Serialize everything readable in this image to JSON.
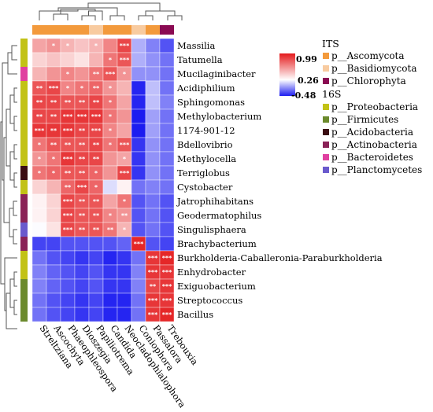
{
  "chart_data": {
    "type": "heatmap",
    "title": "",
    "rows": [
      "Massilia",
      "Tatumella",
      "Mucilaginibacter",
      "Acidiphilium",
      "Sphingomonas",
      "Methylobacterium",
      "1174-901-12",
      "Bdellovibrio",
      "Methylocella",
      "Terriglobus",
      "Cystobacter",
      "Jatrophihabitans",
      "Geodermatophilus",
      "Singulisphaera",
      "Brachybacterium",
      "Burkholderia-Caballeronia-Paraburkholderia",
      "Enhydrobacter",
      "Exiguobacterium",
      "Streptococcus",
      "Bacillus"
    ],
    "columns": [
      "Streltziana",
      "Ascochyta",
      "Phaeophleospora",
      "Dioszegia",
      "Papiliotrema",
      "Candida",
      "Neocladophialophora",
      "Coniophora",
      "Passalora",
      "Trebouxia"
    ],
    "row_phylum": [
      "p__Proteobacteria",
      "p__Proteobacteria",
      "p__Bacteroidetes",
      "p__Proteobacteria",
      "p__Proteobacteria",
      "p__Proteobacteria",
      "p__Proteobacteria",
      "p__Proteobacteria",
      "p__Proteobacteria",
      "p__Acidobacteria",
      "p__Proteobacteria",
      "p__Actinobacteria",
      "p__Actinobacteria",
      "p__Planctomycetes",
      "p__Actinobacteria",
      "p__Proteobacteria",
      "p__Proteobacteria",
      "p__Firmicutes",
      "p__Firmicutes",
      "p__Firmicutes"
    ],
    "column_phylum": [
      "p__Ascomycota",
      "p__Ascomycota",
      "p__Ascomycota",
      "p__Ascomycota",
      "p__Basidiomycota",
      "p__Ascomycota",
      "p__Ascomycota",
      "p__Basidiomycota",
      "p__Ascomycota",
      "p__Chlorophyta"
    ],
    "values": [
      [
        0.55,
        0.6,
        0.5,
        0.45,
        0.5,
        0.65,
        0.85,
        0.0,
        -0.15,
        -0.3
      ],
      [
        0.4,
        0.45,
        0.4,
        0.35,
        0.5,
        0.7,
        0.8,
        0.0,
        -0.1,
        -0.2
      ],
      [
        0.5,
        0.6,
        0.65,
        0.6,
        0.7,
        0.8,
        0.6,
        -0.1,
        -0.1,
        -0.2
      ],
      [
        0.8,
        0.85,
        0.65,
        0.7,
        0.75,
        0.6,
        0.5,
        -0.45,
        0.05,
        -0.2
      ],
      [
        0.85,
        0.85,
        0.8,
        0.8,
        0.85,
        0.7,
        0.55,
        -0.45,
        0.05,
        -0.15
      ],
      [
        0.85,
        0.85,
        0.9,
        0.9,
        0.9,
        0.7,
        0.6,
        -0.48,
        -0.05,
        -0.2
      ],
      [
        0.9,
        0.9,
        0.9,
        0.85,
        0.85,
        0.65,
        0.55,
        -0.48,
        -0.05,
        -0.2
      ],
      [
        0.7,
        0.8,
        0.8,
        0.8,
        0.85,
        0.7,
        0.8,
        -0.4,
        -0.1,
        -0.2
      ],
      [
        0.6,
        0.7,
        0.9,
        0.85,
        0.85,
        0.6,
        0.55,
        -0.4,
        -0.1,
        -0.2
      ],
      [
        0.7,
        0.75,
        0.8,
        0.8,
        0.75,
        0.6,
        0.85,
        -0.4,
        -0.1,
        -0.2
      ],
      [
        0.4,
        0.5,
        0.75,
        0.85,
        0.75,
        0.15,
        0.3,
        -0.2,
        -0.15,
        -0.2
      ],
      [
        0.3,
        0.4,
        0.85,
        0.8,
        0.8,
        0.55,
        0.7,
        -0.3,
        -0.2,
        -0.3
      ],
      [
        0.3,
        0.4,
        0.85,
        0.8,
        0.8,
        0.65,
        0.6,
        -0.3,
        -0.2,
        -0.3
      ],
      [
        0.25,
        0.35,
        0.85,
        0.8,
        0.8,
        0.7,
        0.5,
        -0.3,
        -0.2,
        -0.3
      ],
      [
        -0.35,
        -0.35,
        -0.3,
        -0.3,
        -0.3,
        -0.3,
        -0.25,
        0.95,
        -0.3,
        -0.35
      ],
      [
        -0.2,
        -0.3,
        -0.35,
        -0.4,
        -0.35,
        -0.45,
        -0.4,
        -0.2,
        0.9,
        0.95
      ],
      [
        -0.15,
        -0.25,
        -0.3,
        -0.35,
        -0.3,
        -0.4,
        -0.4,
        -0.15,
        0.9,
        0.9
      ],
      [
        -0.15,
        -0.25,
        -0.3,
        -0.35,
        -0.3,
        -0.4,
        -0.4,
        -0.15,
        0.85,
        0.9
      ],
      [
        -0.2,
        -0.3,
        -0.35,
        -0.4,
        -0.35,
        -0.45,
        -0.45,
        -0.2,
        0.9,
        0.9
      ],
      [
        -0.2,
        -0.3,
        -0.35,
        -0.4,
        -0.35,
        -0.45,
        -0.45,
        -0.2,
        0.9,
        0.95
      ]
    ],
    "significance": [
      [
        "",
        "*",
        "*",
        "",
        "*",
        "",
        "***",
        "",
        "",
        ""
      ],
      [
        "",
        "",
        "",
        "",
        "",
        "*",
        "***",
        "",
        "",
        ""
      ],
      [
        "",
        "",
        "*",
        "",
        "**",
        "***",
        "*",
        "",
        "",
        ""
      ],
      [
        "**",
        "***",
        "*",
        "*",
        "**",
        "*",
        "",
        "",
        "",
        ""
      ],
      [
        "**",
        "**",
        "**",
        "**",
        "**",
        "*",
        "",
        "",
        "",
        ""
      ],
      [
        "**",
        "**",
        "***",
        "***",
        "***",
        "*",
        "",
        "",
        "",
        ""
      ],
      [
        "***",
        "**",
        "***",
        "**",
        "***",
        "*",
        "",
        "",
        "",
        ""
      ],
      [
        "*",
        "**",
        "**",
        "**",
        "**",
        "*",
        "***",
        "",
        "",
        ""
      ],
      [
        "*",
        "*",
        "***",
        "**",
        "**",
        "",
        "*",
        "",
        "",
        ""
      ],
      [
        "*",
        "*",
        "**",
        "**",
        "*",
        "",
        "***",
        "",
        "",
        ""
      ],
      [
        "",
        "",
        "**",
        "***",
        "*",
        "",
        "",
        "",
        "",
        ""
      ],
      [
        "",
        "",
        "***",
        "**",
        "**",
        "",
        "*",
        "",
        "",
        ""
      ],
      [
        "",
        "",
        "***",
        "**",
        "**",
        "*",
        "**",
        "",
        "",
        ""
      ],
      [
        "",
        "",
        "***",
        "**",
        "**",
        "**",
        "*",
        "",
        "",
        ""
      ],
      [
        "",
        "",
        "",
        "",
        "",
        "",
        "",
        "***",
        "",
        ""
      ],
      [
        "",
        "",
        "",
        "",
        "",
        "",
        "",
        "",
        "***",
        "***"
      ],
      [
        "",
        "",
        "",
        "",
        "",
        "",
        "",
        "",
        "***",
        "***"
      ],
      [
        "",
        "",
        "",
        "",
        "",
        "",
        "",
        "",
        "**",
        "***"
      ],
      [
        "",
        "",
        "",
        "",
        "",
        "",
        "",
        "",
        "***",
        "***"
      ],
      [
        "",
        "",
        "",
        "",
        "",
        "",
        "",
        "",
        "***",
        "***"
      ]
    ],
    "colorbar": {
      "max": 0.99,
      "mid": 0.26,
      "min": -0.48,
      "max_label": "0.99",
      "mid_label": "0.26",
      "min_label": "-0.48",
      "color_high": "#e41a1c",
      "color_mid": "#ffffff",
      "color_low": "#1c1cf0"
    },
    "legend": {
      "its_title": "ITS",
      "its_items": [
        {
          "label": "p__Ascomycota",
          "color": "#f39a3c"
        },
        {
          "label": "p__Basidiomycota",
          "color": "#f8cba0"
        },
        {
          "label": "p__Chlorophyta",
          "color": "#8a0a52"
        }
      ],
      "s16_title": "16S",
      "s16_items": [
        {
          "label": "p__Proteobacteria",
          "color": "#c2c216"
        },
        {
          "label": "p__Firmicutes",
          "color": "#6b8a2c"
        },
        {
          "label": "p__Acidobacteria",
          "color": "#3a0d12"
        },
        {
          "label": "p__Actinobacteria",
          "color": "#8a2357"
        },
        {
          "label": "p__Bacteroidetes",
          "color": "#e040a0"
        },
        {
          "label": "p__Planctomycetes",
          "color": "#6a5acd"
        }
      ]
    }
  }
}
